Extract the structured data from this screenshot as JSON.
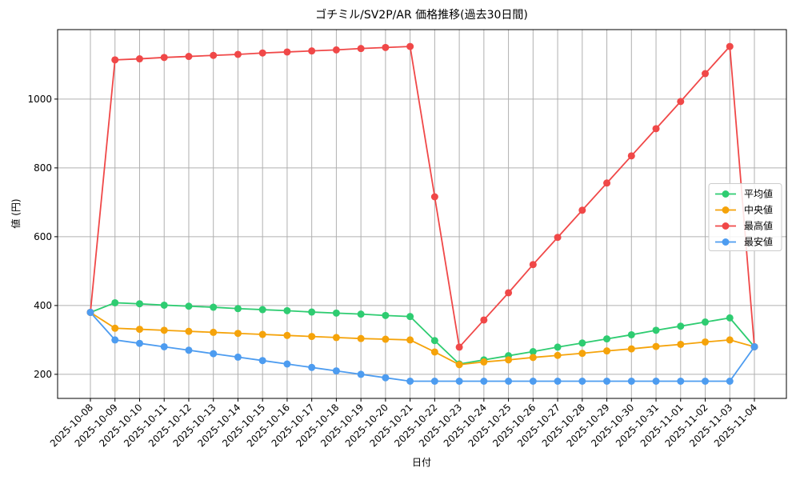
{
  "chart_data": {
    "type": "line",
    "title": "ゴチミル/SV2P/AR 価格推移(過去30日間)",
    "x_label": "日付",
    "y_label": "値 (円)",
    "categories": [
      "2025-10-08",
      "2025-10-09",
      "2025-10-10",
      "2025-10-11",
      "2025-10-12",
      "2025-10-13",
      "2025-10-14",
      "2025-10-15",
      "2025-10-16",
      "2025-10-17",
      "2025-10-18",
      "2025-10-19",
      "2025-10-20",
      "2025-10-21",
      "2025-10-22",
      "2025-10-23",
      "2025-10-24",
      "2025-10-25",
      "2025-10-26",
      "2025-10-27",
      "2025-10-28",
      "2025-10-29",
      "2025-10-30",
      "2025-10-31",
      "2025-11-01",
      "2025-11-02",
      "2025-11-03",
      "2025-11-04"
    ],
    "series": [
      {
        "name": "平均値",
        "color": "#2ecc71",
        "values": [
          380,
          408,
          405,
          401,
          398,
          395,
          391,
          388,
          385,
          381,
          378,
          375,
          371,
          368,
          298,
          230,
          242,
          254,
          266,
          279,
          291,
          303,
          315,
          328,
          340,
          352,
          364,
          280
        ]
      },
      {
        "name": "中央値",
        "color": "#f5a30a",
        "values": [
          380,
          334,
          331,
          328,
          325,
          322,
          319,
          316,
          313,
          310,
          307,
          304,
          302,
          300,
          265,
          228,
          236,
          242,
          249,
          255,
          261,
          268,
          274,
          281,
          287,
          294,
          300,
          280
        ]
      },
      {
        "name": "最高値",
        "color": "#f04848",
        "values": [
          380,
          1114,
          1117,
          1121,
          1124,
          1127,
          1130,
          1134,
          1137,
          1140,
          1143,
          1147,
          1150,
          1153,
          716,
          279,
          358,
          437,
          519,
          598,
          677,
          756,
          835,
          914,
          993,
          1074,
          1153,
          280
        ]
      },
      {
        "name": "最安値",
        "color": "#4d9cf0",
        "values": [
          380,
          300,
          290,
          280,
          270,
          260,
          250,
          240,
          230,
          220,
          210,
          200,
          190,
          180,
          180,
          180,
          180,
          180,
          180,
          180,
          180,
          180,
          180,
          180,
          180,
          180,
          180,
          280
        ]
      }
    ],
    "ylim": [
      130,
      1202
    ],
    "yticks": [
      200,
      400,
      600,
      800,
      1000
    ],
    "grid": true,
    "legend": "center right"
  }
}
